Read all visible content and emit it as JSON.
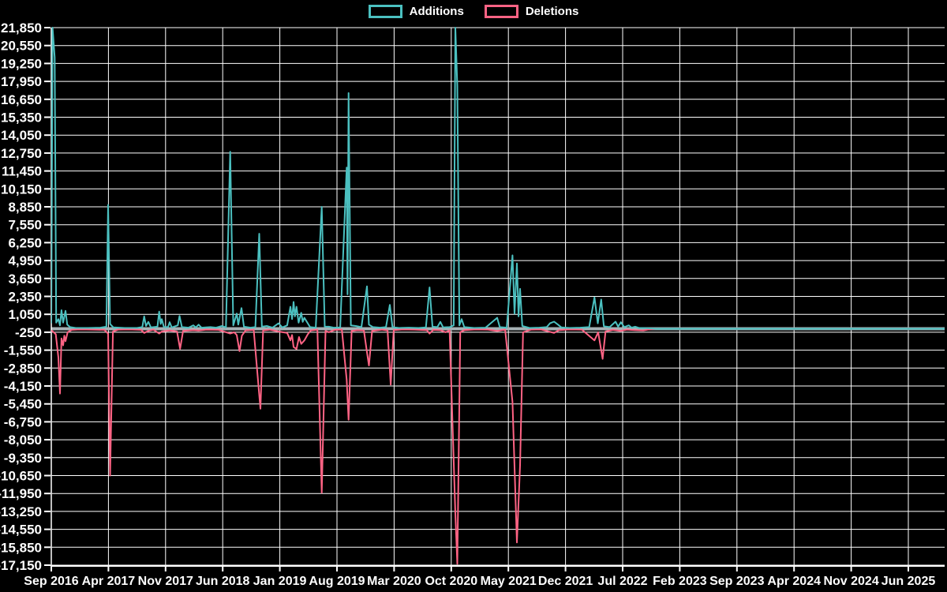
{
  "chart_data": {
    "type": "line",
    "title": "",
    "background": "#000000",
    "grid": true,
    "grid_color": "#ffffff",
    "zero_line_color": "#a6b1b5",
    "text_color": "#ffffff",
    "legend_position": "top-center",
    "x_axis_tick_labels": [
      "Sep 2016",
      "Apr 2017",
      "Nov 2017",
      "Jun 2018",
      "Jan 2019",
      "Aug 2019",
      "Mar 2020",
      "Oct 2020",
      "May 2021",
      "Dec 2021",
      "Jul 2022",
      "Feb 2023",
      "Sep 2023",
      "Apr 2024",
      "Nov 2024",
      "Jun 2025"
    ],
    "x_tick_interval_months": 7,
    "x_unit": "months since Sep 2016 (weekly commit data)",
    "ylim": [
      -17150,
      21850
    ],
    "y_ticks": [
      21850,
      20550,
      19250,
      17950,
      16650,
      15350,
      14050,
      12750,
      11450,
      10150,
      8850,
      7550,
      6250,
      4950,
      3650,
      2350,
      1050,
      -250,
      -1550,
      -2850,
      -4150,
      -5450,
      -6750,
      -8050,
      -9350,
      -10650,
      -11950,
      -13250,
      -14550,
      -15850,
      -17150
    ],
    "series": [
      {
        "name": "Additions",
        "color": "#4bc0c0",
        "points": [
          [
            0,
            400
          ],
          [
            0.15,
            22500
          ],
          [
            0.42,
            19690
          ],
          [
            0.6,
            450
          ],
          [
            0.87,
            700
          ],
          [
            1.06,
            250
          ],
          [
            1.25,
            1350
          ],
          [
            1.45,
            450
          ],
          [
            1.74,
            1300
          ],
          [
            1.95,
            300
          ],
          [
            2.3,
            120
          ],
          [
            3,
            60
          ],
          [
            4.5,
            60
          ],
          [
            6,
            80
          ],
          [
            6.75,
            150
          ],
          [
            6.96,
            8990
          ],
          [
            7.2,
            350
          ],
          [
            7.6,
            100
          ],
          [
            9,
            60
          ],
          [
            10.5,
            60
          ],
          [
            11.15,
            120
          ],
          [
            11.38,
            900
          ],
          [
            11.6,
            200
          ],
          [
            11.89,
            500
          ],
          [
            12.2,
            100
          ],
          [
            13,
            150
          ],
          [
            13.22,
            1250
          ],
          [
            13.4,
            350
          ],
          [
            13.54,
            700
          ],
          [
            13.8,
            120
          ],
          [
            14.3,
            120
          ],
          [
            14.5,
            480
          ],
          [
            14.75,
            100
          ],
          [
            15.5,
            250
          ],
          [
            15.71,
            930
          ],
          [
            16,
            120
          ],
          [
            16.8,
            80
          ],
          [
            17.4,
            250
          ],
          [
            17.7,
            100
          ],
          [
            18.05,
            300
          ],
          [
            18.4,
            80
          ],
          [
            19.5,
            120
          ],
          [
            20.2,
            80
          ],
          [
            20.9,
            200
          ],
          [
            21.4,
            100
          ],
          [
            21.92,
            12850
          ],
          [
            22.3,
            250
          ],
          [
            22.72,
            1100
          ],
          [
            22.9,
            300
          ],
          [
            23.3,
            1500
          ],
          [
            23.6,
            150
          ],
          [
            24.4,
            80
          ],
          [
            25,
            120
          ],
          [
            25.48,
            6900
          ],
          [
            25.8,
            150
          ],
          [
            26.4,
            200
          ],
          [
            27.1,
            80
          ],
          [
            27.85,
            400
          ],
          [
            28.3,
            100
          ],
          [
            28.9,
            250
          ],
          [
            29.3,
            1600
          ],
          [
            29.5,
            700
          ],
          [
            29.68,
            1950
          ],
          [
            29.85,
            900
          ],
          [
            30.04,
            1600
          ],
          [
            30.3,
            450
          ],
          [
            30.62,
            1160
          ],
          [
            30.8,
            500
          ],
          [
            31.01,
            800
          ],
          [
            31.42,
            400
          ],
          [
            31.7,
            120
          ],
          [
            32.4,
            80
          ],
          [
            33.13,
            8850
          ],
          [
            33.5,
            150
          ],
          [
            34,
            150
          ],
          [
            34.6,
            80
          ],
          [
            35.4,
            100
          ],
          [
            36.19,
            11700
          ],
          [
            36.3,
            2500
          ],
          [
            36.42,
            17100
          ],
          [
            36.7,
            250
          ],
          [
            37.3,
            200
          ],
          [
            38,
            120
          ],
          [
            38.67,
            3080
          ],
          [
            38.92,
            300
          ],
          [
            39.4,
            120
          ],
          [
            40.3,
            80
          ],
          [
            41,
            120
          ],
          [
            41.48,
            1740
          ],
          [
            41.8,
            120
          ],
          [
            42.6,
            60
          ],
          [
            43.8,
            80
          ],
          [
            45,
            60
          ],
          [
            45.9,
            100
          ],
          [
            46.34,
            3000
          ],
          [
            46.7,
            150
          ],
          [
            47.3,
            120
          ],
          [
            47.67,
            500
          ],
          [
            48,
            100
          ],
          [
            48.8,
            120
          ],
          [
            49.3,
            250
          ],
          [
            49.5,
            22500
          ],
          [
            49.74,
            17600
          ],
          [
            50,
            250
          ],
          [
            50.28,
            700
          ],
          [
            50.6,
            120
          ],
          [
            51.8,
            60
          ],
          [
            53.2,
            80
          ],
          [
            54.63,
            800
          ],
          [
            54.95,
            120
          ],
          [
            55.8,
            80
          ],
          [
            56.5,
            5330
          ],
          [
            56.75,
            1100
          ],
          [
            57.04,
            4740
          ],
          [
            57.25,
            900
          ],
          [
            57.43,
            2900
          ],
          [
            57.7,
            200
          ],
          [
            58.6,
            60
          ],
          [
            59.8,
            80
          ],
          [
            60.7,
            120
          ],
          [
            61.1,
            400
          ],
          [
            61.6,
            520
          ],
          [
            62.08,
            300
          ],
          [
            62.5,
            100
          ],
          [
            63.5,
            60
          ],
          [
            64.8,
            80
          ],
          [
            65.9,
            120
          ],
          [
            66.55,
            2280
          ],
          [
            66.95,
            400
          ],
          [
            67.37,
            2120
          ],
          [
            67.7,
            180
          ],
          [
            68.4,
            120
          ],
          [
            69.13,
            520
          ],
          [
            69.45,
            150
          ],
          [
            69.78,
            480
          ],
          [
            70.2,
            120
          ],
          [
            70.74,
            250
          ],
          [
            71.1,
            80
          ],
          [
            71.55,
            150
          ],
          [
            72,
            60
          ],
          [
            73,
            40
          ],
          [
            74,
            0
          ],
          [
            109.45,
            0
          ]
        ]
      },
      {
        "name": "Deletions",
        "color": "#ff6384",
        "points": [
          [
            0,
            -120
          ],
          [
            0.3,
            -250
          ],
          [
            0.55,
            -400
          ],
          [
            0.87,
            -2100
          ],
          [
            1.06,
            -4700
          ],
          [
            1.25,
            -700
          ],
          [
            1.45,
            -1200
          ],
          [
            1.6,
            -500
          ],
          [
            1.74,
            -900
          ],
          [
            2,
            -250
          ],
          [
            2.5,
            -80
          ],
          [
            3.5,
            -50
          ],
          [
            5,
            -60
          ],
          [
            6.5,
            -80
          ],
          [
            6.96,
            -350
          ],
          [
            7.2,
            -10650
          ],
          [
            7.55,
            -200
          ],
          [
            8.2,
            -60
          ],
          [
            9.5,
            -50
          ],
          [
            11,
            -80
          ],
          [
            11.38,
            -300
          ],
          [
            11.89,
            -150
          ],
          [
            12.5,
            -60
          ],
          [
            13.22,
            -350
          ],
          [
            13.54,
            -200
          ],
          [
            14.5,
            -120
          ],
          [
            15.4,
            -200
          ],
          [
            15.78,
            -1450
          ],
          [
            16.15,
            -150
          ],
          [
            17.4,
            -100
          ],
          [
            18.05,
            -130
          ],
          [
            19,
            -60
          ],
          [
            20.5,
            -80
          ],
          [
            21.92,
            -350
          ],
          [
            22.4,
            -250
          ],
          [
            22.72,
            -450
          ],
          [
            23.06,
            -1620
          ],
          [
            23.35,
            -500
          ],
          [
            23.8,
            -120
          ],
          [
            24.8,
            -80
          ],
          [
            25.62,
            -5800
          ],
          [
            25.95,
            -120
          ],
          [
            26.8,
            -60
          ],
          [
            27.85,
            -200
          ],
          [
            28.9,
            -300
          ],
          [
            29.3,
            -840
          ],
          [
            29.5,
            -450
          ],
          [
            29.68,
            -1320
          ],
          [
            30.04,
            -1470
          ],
          [
            30.35,
            -600
          ],
          [
            30.62,
            -1100
          ],
          [
            31.01,
            -840
          ],
          [
            31.42,
            -400
          ],
          [
            31.8,
            -120
          ],
          [
            32.6,
            -60
          ],
          [
            33.13,
            -11900
          ],
          [
            33.6,
            -150
          ],
          [
            34,
            -250
          ],
          [
            34.7,
            -80
          ],
          [
            35.6,
            -60
          ],
          [
            36.19,
            -3700
          ],
          [
            36.42,
            -6600
          ],
          [
            36.8,
            -150
          ],
          [
            37.5,
            -100
          ],
          [
            38.3,
            -120
          ],
          [
            38.67,
            -1700
          ],
          [
            38.92,
            -2660
          ],
          [
            39.3,
            -150
          ],
          [
            40.5,
            -60
          ],
          [
            41.2,
            -120
          ],
          [
            41.58,
            -4050
          ],
          [
            41.95,
            -100
          ],
          [
            43,
            -50
          ],
          [
            44.5,
            -60
          ],
          [
            46,
            -100
          ],
          [
            46.34,
            -350
          ],
          [
            46.8,
            -80
          ],
          [
            47.67,
            -100
          ],
          [
            48.3,
            -250
          ],
          [
            48.8,
            -120
          ],
          [
            49.5,
            -13400
          ],
          [
            49.74,
            -17050
          ],
          [
            50.1,
            -250
          ],
          [
            50.6,
            -100
          ],
          [
            52,
            -50
          ],
          [
            53.5,
            -60
          ],
          [
            54.63,
            -150
          ],
          [
            55.6,
            -60
          ],
          [
            56.5,
            -5300
          ],
          [
            57.04,
            -15500
          ],
          [
            57.43,
            -9900
          ],
          [
            57.8,
            -250
          ],
          [
            58.8,
            -60
          ],
          [
            60,
            -50
          ],
          [
            61.6,
            -300
          ],
          [
            62.2,
            -100
          ],
          [
            63.5,
            -50
          ],
          [
            65,
            -60
          ],
          [
            66.55,
            -840
          ],
          [
            67,
            -250
          ],
          [
            67.54,
            -2180
          ],
          [
            67.9,
            -200
          ],
          [
            68.8,
            -80
          ],
          [
            69.78,
            -150
          ],
          [
            70.5,
            -60
          ],
          [
            71.55,
            -100
          ],
          [
            72.52,
            -120
          ],
          [
            73.2,
            -50
          ],
          [
            74.2,
            0
          ],
          [
            109.45,
            0
          ]
        ]
      }
    ]
  }
}
